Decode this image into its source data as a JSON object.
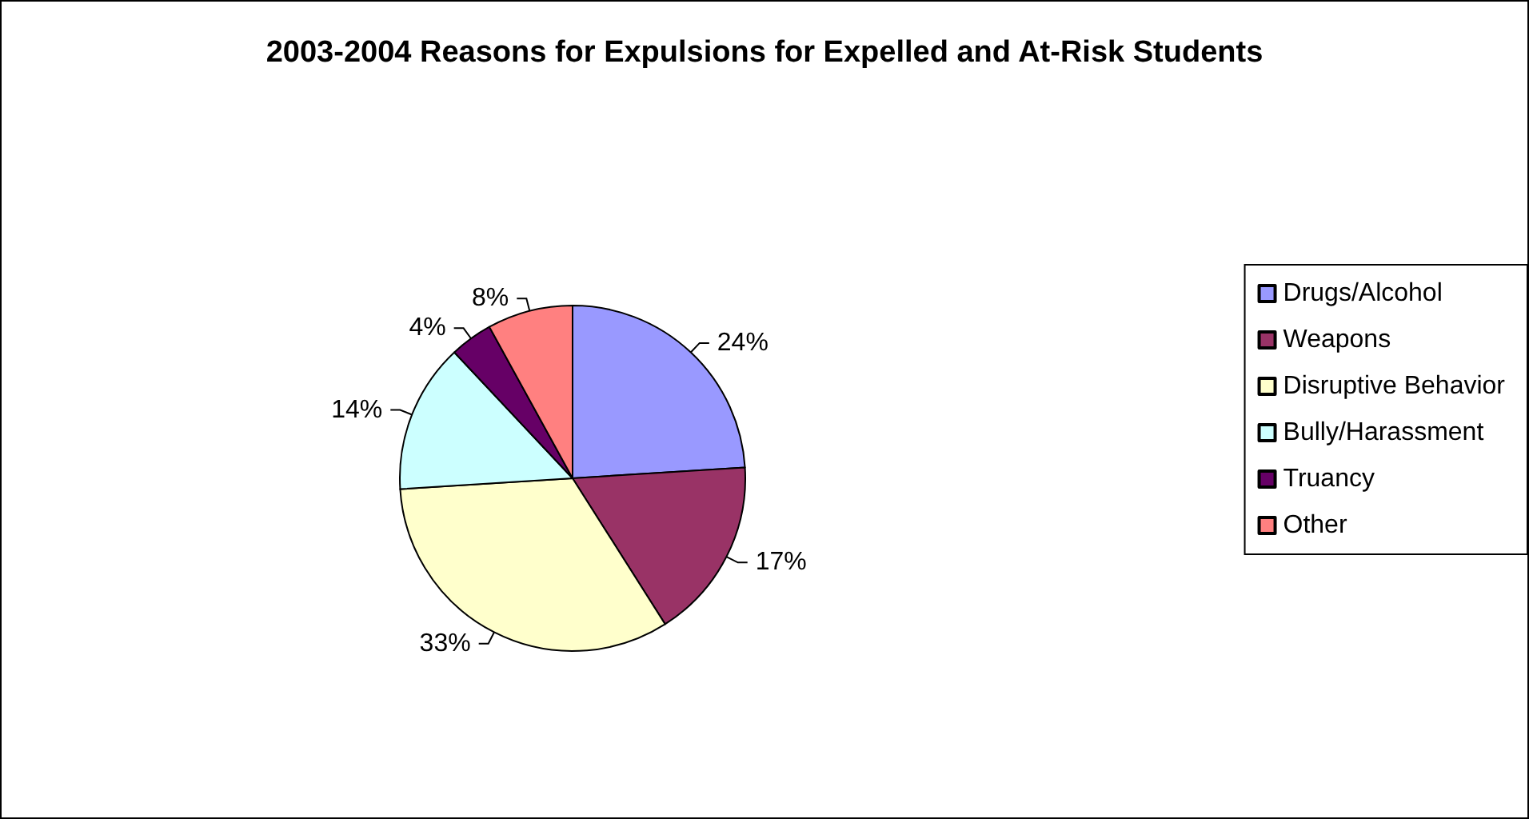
{
  "chart_data": {
    "type": "pie",
    "title": "2003-2004 Reasons for Expulsions for Expelled and At-Risk Students",
    "categories": [
      "Drugs/Alcohol",
      "Weapons",
      "Disruptive Behavior",
      "Bully/Harassment",
      "Truancy",
      "Other"
    ],
    "values": [
      24,
      17,
      33,
      14,
      4,
      8
    ],
    "colors": [
      "#9999ff",
      "#993366",
      "#ffffcc",
      "#ccffff",
      "#660066",
      "#ff8080"
    ],
    "value_labels": [
      "24%",
      "17%",
      "33%",
      "14%",
      "4%",
      "8%"
    ],
    "legend": "right"
  }
}
